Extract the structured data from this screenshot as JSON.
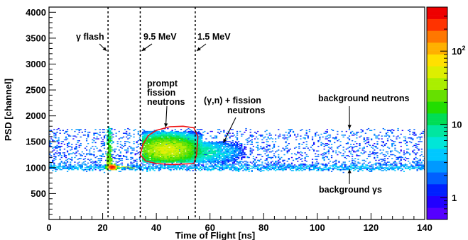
{
  "chart_data": {
    "type": "heatmap",
    "xlabel": "Time of Flight [ns]",
    "ylabel": "PSD [channel]",
    "xlim": [
      0,
      140
    ],
    "ylim": [
      0,
      4100
    ],
    "x_ticks": [
      0,
      20,
      40,
      60,
      80,
      100,
      120,
      140
    ],
    "y_ticks": [
      500,
      1000,
      1500,
      2000,
      2500,
      3000,
      3500,
      4000
    ],
    "colorbar": {
      "scale": "log",
      "range": [
        0.5,
        400
      ],
      "ticks": [
        {
          "value": 1,
          "label": "1"
        },
        {
          "value": 10,
          "label": "10"
        },
        {
          "value": 100,
          "label": "10",
          "sup": "2"
        }
      ],
      "palette": [
        "#5500ff",
        "#2200ff",
        "#0020ff",
        "#0060ff",
        "#0099ff",
        "#00c8ff",
        "#00e6d8",
        "#00e6a0",
        "#00dd55",
        "#22dd00",
        "#66e000",
        "#aaee00",
        "#ddee00",
        "#ffe000",
        "#ffb000",
        "#ff7700",
        "#ff3300",
        "#ee0000"
      ]
    },
    "vertical_lines": [
      {
        "x": 22,
        "label": "γ flash"
      },
      {
        "x": 34,
        "label": "9.5 MeV"
      },
      {
        "x": 54.5,
        "label": "1.5 MeV"
      }
    ],
    "regions": [
      {
        "name": "background gammas band",
        "x_range": [
          0,
          140
        ],
        "y_center": 1000,
        "y_halfwidth": 30,
        "level": 3
      },
      {
        "name": "background neutrons band",
        "x_range": [
          0,
          140
        ],
        "y_range": [
          1050,
          1750
        ],
        "level": 1.5
      },
      {
        "name": "gamma flash",
        "x_center": 22.5,
        "y_range": [
          1000,
          1800
        ],
        "level": 50
      },
      {
        "name": "gamma flash hot spot",
        "x_center": 23,
        "y_center": 1010,
        "level": 300
      },
      {
        "name": "prompt fission neutrons",
        "x_range": [
          35,
          55
        ],
        "y_range": [
          1100,
          1700
        ],
        "peak_x": 44,
        "peak_y": 1350,
        "level": 40
      },
      {
        "name": "(γ,n) + fission neutrons tail",
        "x_range": [
          55,
          75
        ],
        "y_range": [
          1100,
          1500
        ],
        "level": 8
      }
    ],
    "highlight_contour": {
      "color": "#ee1111",
      "points": [
        [
          34,
          1250
        ],
        [
          35,
          1450
        ],
        [
          37,
          1620
        ],
        [
          40,
          1720
        ],
        [
          45,
          1790
        ],
        [
          50,
          1800
        ],
        [
          54,
          1770
        ],
        [
          55.5,
          1600
        ],
        [
          55,
          1250
        ],
        [
          54,
          1080
        ],
        [
          46,
          1060
        ],
        [
          40,
          1080
        ],
        [
          36,
          1130
        ],
        [
          34,
          1250
        ]
      ]
    },
    "annotations": [
      {
        "text": "γ flash",
        "arrow_to": [
          22,
          3900
        ]
      },
      {
        "text": "9.5 MeV",
        "arrow_to": [
          34,
          3900
        ]
      },
      {
        "text": "1.5 MeV",
        "arrow_to": [
          54.5,
          3900
        ]
      },
      {
        "lines": [
          "prompt",
          "fission",
          "neutrons"
        ],
        "arrow_to": [
          43.5,
          1780
        ]
      },
      {
        "lines": [
          "(γ,n) + fission",
          "neutrons"
        ],
        "arrow_to": [
          65,
          1480
        ]
      },
      {
        "text": "background neutrons",
        "arrow_to": [
          112,
          1750
        ]
      },
      {
        "text": "background γs",
        "arrow_to": [
          112,
          1010
        ]
      }
    ]
  }
}
